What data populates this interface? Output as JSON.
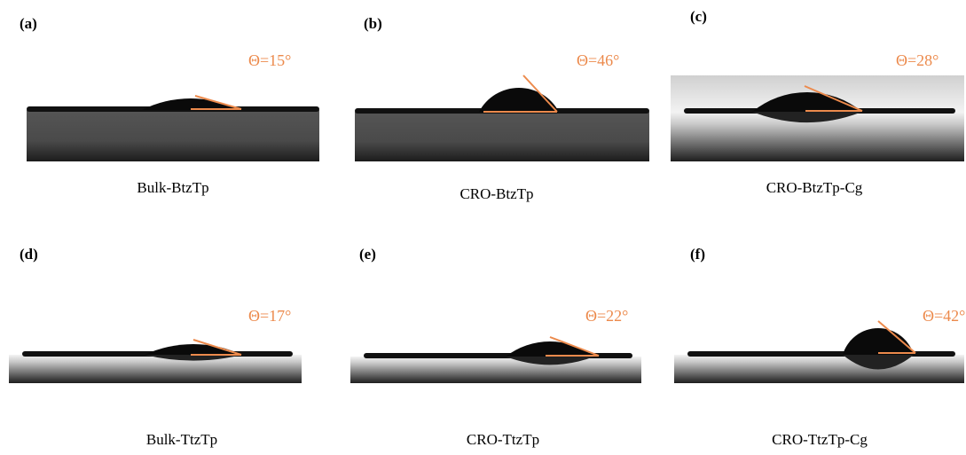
{
  "panels": [
    {
      "label": "(a)",
      "angle": "Θ=15°",
      "caption": "Bulk-BtzTp"
    },
    {
      "label": "(b)",
      "angle": "Θ=46°",
      "caption": "CRO-BtzTp"
    },
    {
      "label": "(c)",
      "angle": "Θ=28°",
      "caption": "CRO-BtzTp-Cg"
    },
    {
      "label": "(d)",
      "angle": "Θ=17°",
      "caption": "Bulk-TtzTp"
    },
    {
      "label": "(e)",
      "angle": "Θ=22°",
      "caption": "CRO-TtzTp"
    },
    {
      "label": "(f)",
      "angle": "Θ=42°",
      "caption": "CRO-TtzTp-Cg"
    }
  ]
}
